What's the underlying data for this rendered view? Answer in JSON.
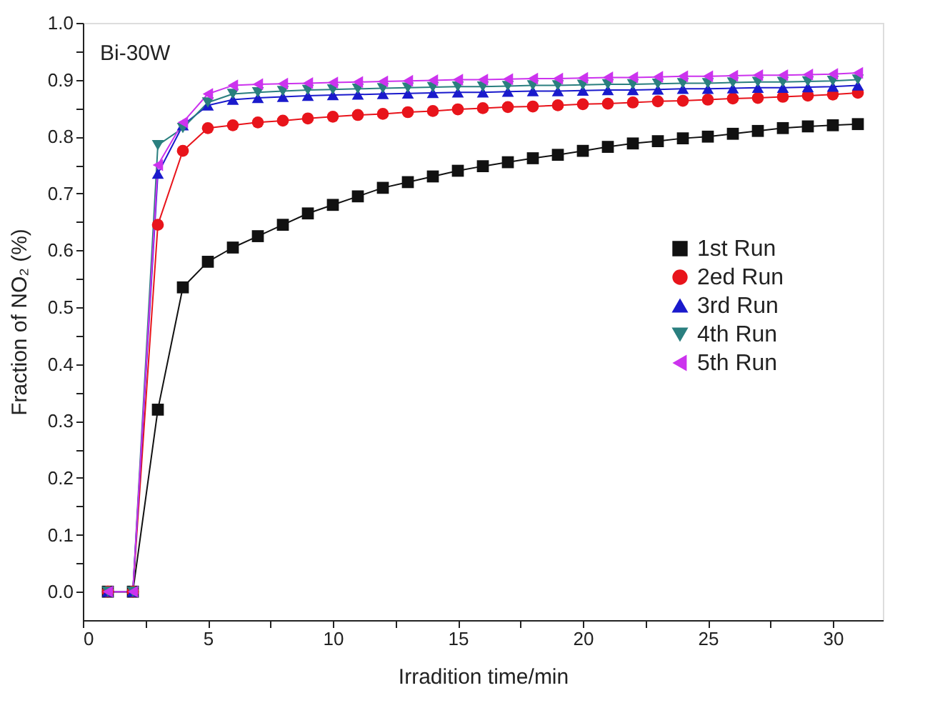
{
  "chart_data": {
    "type": "line",
    "xlabel": "Irradition time/min",
    "ylabel": "Fraction of NO₂ (%)",
    "annotations": [
      "Bi-30W"
    ],
    "x": [
      1,
      2,
      3,
      4,
      5,
      6,
      7,
      8,
      9,
      10,
      11,
      12,
      13,
      14,
      15,
      16,
      17,
      18,
      19,
      20,
      21,
      22,
      23,
      24,
      25,
      26,
      27,
      28,
      29,
      30,
      31
    ],
    "xlim": [
      0,
      32
    ],
    "ylim": [
      -0.05,
      1.0
    ],
    "xticks": [
      0,
      {
        "value": 2.5,
        "label": null
      },
      5,
      {
        "value": 7.5,
        "label": null
      },
      10,
      {
        "value": 12.5,
        "label": null
      },
      15,
      {
        "value": 17.5,
        "label": null
      },
      20,
      {
        "value": 22.5,
        "label": null
      },
      25,
      {
        "value": 27.5,
        "label": null
      },
      30
    ],
    "yticks": [
      {
        "value": 0,
        "label": "0.0"
      },
      {
        "value": 0.05,
        "label": null
      },
      {
        "value": 0.1,
        "label": "0.1"
      },
      {
        "value": 0.15,
        "label": null
      },
      {
        "value": 0.2,
        "label": "0.2"
      },
      {
        "value": 0.25,
        "label": null
      },
      {
        "value": 0.3,
        "label": "0.3"
      },
      {
        "value": 0.35,
        "label": null
      },
      {
        "value": 0.4,
        "label": "0.4"
      },
      {
        "value": 0.45,
        "label": null
      },
      {
        "value": 0.5,
        "label": "0.5"
      },
      {
        "value": 0.55,
        "label": null
      },
      {
        "value": 0.6,
        "label": "0.6"
      },
      {
        "value": 0.65,
        "label": null
      },
      {
        "value": 0.7,
        "label": "0.7"
      },
      {
        "value": 0.75,
        "label": null
      },
      {
        "value": 0.8,
        "label": "0.8"
      },
      {
        "value": 0.85,
        "label": null
      },
      {
        "value": 0.9,
        "label": "0.9"
      },
      {
        "value": 0.95,
        "label": null
      },
      {
        "value": 1.0,
        "label": "1.0"
      }
    ],
    "grid": false,
    "legend": "right",
    "line_style": "solid",
    "series": [
      {
        "name": "1st  Run",
        "color": "#111111",
        "marker": "square",
        "values": [
          0,
          0,
          0.32,
          0.535,
          0.58,
          0.605,
          0.625,
          0.645,
          0.665,
          0.68,
          0.695,
          0.71,
          0.72,
          0.73,
          0.74,
          0.748,
          0.755,
          0.762,
          0.768,
          0.775,
          0.782,
          0.788,
          0.792,
          0.797,
          0.8,
          0.805,
          0.81,
          0.815,
          0.818,
          0.82,
          0.822
        ]
      },
      {
        "name": "2ed Run",
        "color": "#e8141b",
        "marker": "circle",
        "values": [
          0,
          0,
          0.645,
          0.775,
          0.815,
          0.82,
          0.825,
          0.828,
          0.832,
          0.835,
          0.838,
          0.84,
          0.843,
          0.845,
          0.848,
          0.85,
          0.852,
          0.853,
          0.855,
          0.857,
          0.858,
          0.86,
          0.862,
          0.863,
          0.865,
          0.867,
          0.868,
          0.87,
          0.872,
          0.874,
          0.877
        ]
      },
      {
        "name": "3rd  Run",
        "color": "#1a1acc",
        "marker": "triangle",
        "values": [
          0,
          0,
          0.735,
          0.82,
          0.855,
          0.865,
          0.868,
          0.87,
          0.872,
          0.873,
          0.874,
          0.875,
          0.876,
          0.877,
          0.878,
          0.878,
          0.879,
          0.88,
          0.88,
          0.881,
          0.882,
          0.882,
          0.883,
          0.884,
          0.884,
          0.885,
          0.886,
          0.886,
          0.887,
          0.888,
          0.89
        ]
      },
      {
        "name": "4th  Run",
        "color": "#2a7f7f",
        "marker": "triangle-down",
        "values": [
          0,
          0,
          0.785,
          0.815,
          0.86,
          0.875,
          0.878,
          0.88,
          0.882,
          0.883,
          0.884,
          0.885,
          0.886,
          0.887,
          0.888,
          0.888,
          0.889,
          0.89,
          0.89,
          0.891,
          0.892,
          0.892,
          0.893,
          0.894,
          0.894,
          0.895,
          0.896,
          0.896,
          0.897,
          0.898,
          0.9
        ]
      },
      {
        "name": "5th  Run",
        "color": "#cc33ee",
        "marker": "triangle-left",
        "values": [
          0,
          0,
          0.75,
          0.825,
          0.875,
          0.89,
          0.892,
          0.893,
          0.894,
          0.895,
          0.896,
          0.897,
          0.898,
          0.899,
          0.9,
          0.9,
          0.901,
          0.902,
          0.902,
          0.903,
          0.904,
          0.904,
          0.905,
          0.906,
          0.906,
          0.907,
          0.908,
          0.908,
          0.909,
          0.91,
          0.912
        ]
      }
    ]
  }
}
